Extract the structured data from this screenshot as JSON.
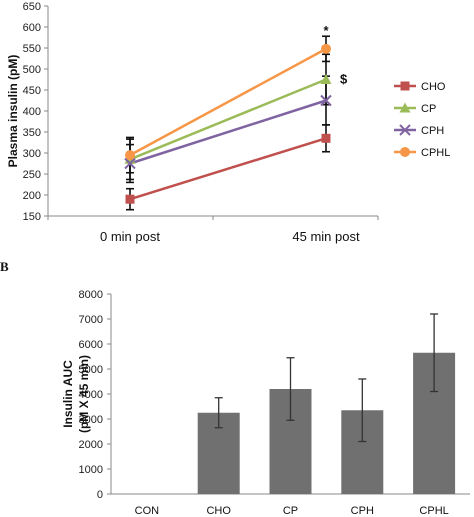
{
  "panel_b_label": "B",
  "chart_data": [
    {
      "type": "line",
      "title": "",
      "xlabel": "",
      "ylabel": "Plasma insulin (pM)",
      "categories": [
        "0 min post",
        "45 min post"
      ],
      "ylim": [
        150,
        650
      ],
      "yticks": [
        150,
        200,
        250,
        300,
        350,
        400,
        450,
        500,
        550,
        600,
        650
      ],
      "grid": false,
      "legend_position": "right",
      "series": [
        {
          "name": "CHO",
          "values": [
            190,
            335
          ],
          "errors": [
            25,
            32
          ],
          "color": "#c0504d",
          "marker": "square"
        },
        {
          "name": "CP",
          "values": [
            285,
            475
          ],
          "errors": [
            48,
            60
          ],
          "color": "#9bbb59",
          "marker": "triangle"
        },
        {
          "name": "CPH",
          "values": [
            275,
            425
          ],
          "errors": [
            45,
            58
          ],
          "color": "#8064a2",
          "marker": "x"
        },
        {
          "name": "CPHL",
          "values": [
            295,
            548
          ],
          "errors": [
            42,
            30
          ],
          "color": "#f79646",
          "marker": "circle"
        }
      ],
      "annotations": [
        {
          "text": "*",
          "category": "45 min post",
          "y": 590
        },
        {
          "text": "$",
          "category": "45 min post",
          "y": 475
        }
      ]
    },
    {
      "type": "bar",
      "title": "",
      "xlabel": "",
      "ylabel": "Insulin AUC (pM X 45 min)",
      "ylabel_lines": [
        "Insulin AUC",
        "(pM X 45 min)"
      ],
      "categories": [
        "CON",
        "CHO",
        "CP",
        "CPH",
        "CPHL"
      ],
      "values": [
        0,
        3250,
        4200,
        3350,
        5650
      ],
      "errors": [
        0,
        600,
        1250,
        1250,
        1550
      ],
      "ylim": [
        0,
        8000
      ],
      "yticks": [
        0,
        1000,
        2000,
        3000,
        4000,
        5000,
        6000,
        7000,
        8000
      ],
      "grid": false,
      "bar_color": "#707070"
    }
  ]
}
